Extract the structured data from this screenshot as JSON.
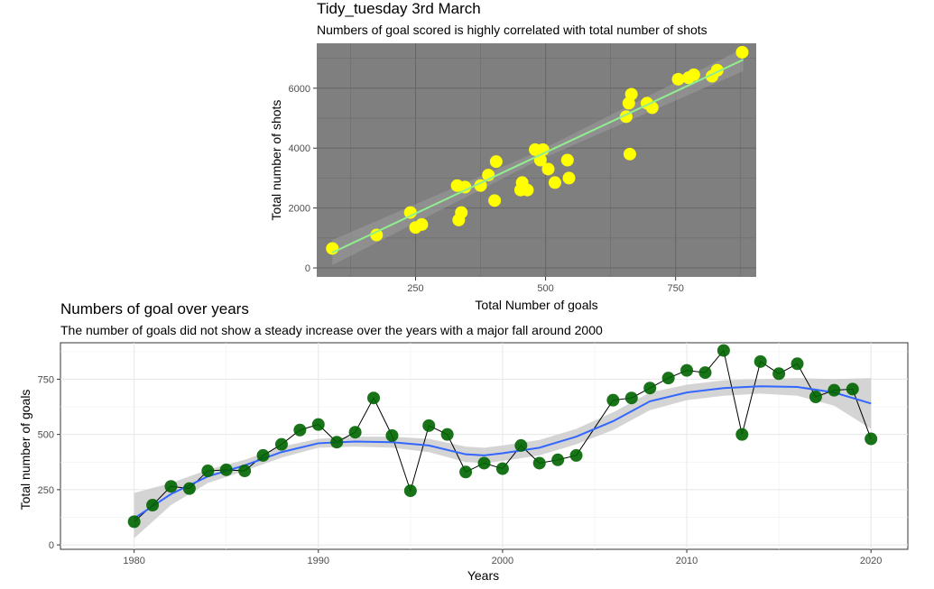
{
  "chart_data": [
    {
      "type": "scatter",
      "title": "Tidy_tuesday 3rd March",
      "subtitle": "Numbers of goal scored is highly correlated with total number of shots",
      "xlabel": "Total Number of goals",
      "ylabel": "Total number of shots",
      "xlim": [
        60,
        905
      ],
      "ylim": [
        -300,
        7500
      ],
      "xticks": [
        250,
        500,
        750
      ],
      "yticks": [
        0,
        2000,
        4000,
        6000
      ],
      "grid": true,
      "background": "#7f7f7f",
      "point_color": "#ffff00",
      "fit_color": "#90ee90",
      "fit_line": {
        "method": "lm",
        "intercept": -220,
        "slope": 8.15,
        "x_range": [
          90,
          880
        ]
      },
      "points": [
        {
          "x": 90,
          "y": 650
        },
        {
          "x": 175,
          "y": 1100
        },
        {
          "x": 240,
          "y": 1850
        },
        {
          "x": 250,
          "y": 1350
        },
        {
          "x": 262,
          "y": 1450
        },
        {
          "x": 330,
          "y": 2750
        },
        {
          "x": 333,
          "y": 1600
        },
        {
          "x": 338,
          "y": 1850
        },
        {
          "x": 345,
          "y": 2700
        },
        {
          "x": 375,
          "y": 2750
        },
        {
          "x": 390,
          "y": 3100
        },
        {
          "x": 402,
          "y": 2250
        },
        {
          "x": 405,
          "y": 3550
        },
        {
          "x": 452,
          "y": 2600
        },
        {
          "x": 455,
          "y": 2850
        },
        {
          "x": 465,
          "y": 2600
        },
        {
          "x": 480,
          "y": 3950
        },
        {
          "x": 490,
          "y": 3600
        },
        {
          "x": 495,
          "y": 3950
        },
        {
          "x": 505,
          "y": 3300
        },
        {
          "x": 518,
          "y": 2850
        },
        {
          "x": 542,
          "y": 3600
        },
        {
          "x": 545,
          "y": 3000
        },
        {
          "x": 655,
          "y": 5050
        },
        {
          "x": 660,
          "y": 5500
        },
        {
          "x": 662,
          "y": 3800
        },
        {
          "x": 665,
          "y": 5800
        },
        {
          "x": 695,
          "y": 5500
        },
        {
          "x": 705,
          "y": 5350
        },
        {
          "x": 755,
          "y": 6300
        },
        {
          "x": 775,
          "y": 6350
        },
        {
          "x": 785,
          "y": 6450
        },
        {
          "x": 820,
          "y": 6400
        },
        {
          "x": 830,
          "y": 6600
        },
        {
          "x": 878,
          "y": 7200
        }
      ]
    },
    {
      "type": "line",
      "title": "Numbers of goal over years",
      "subtitle": "The number of goals did not show a steady increase over the years with a major fall around 2000",
      "xlabel": "Years",
      "ylabel": "Total number of goals",
      "xlim": [
        1976,
        2022
      ],
      "ylim": [
        -20,
        915
      ],
      "xticks": [
        1980,
        1990,
        2000,
        2010,
        2020
      ],
      "yticks": [
        0,
        250,
        500,
        750
      ],
      "grid": true,
      "point_color": "#006400",
      "line_color": "#000000",
      "smooth_color": "#3366ff",
      "ribbon_color": "#cccccc",
      "x": [
        1980,
        1981,
        1982,
        1983,
        1984,
        1985,
        1986,
        1987,
        1988,
        1989,
        1990,
        1991,
        1992,
        1993,
        1994,
        1995,
        1996,
        1997,
        1998,
        1999,
        2000,
        2001,
        2002,
        2003,
        2004,
        2006,
        2007,
        2008,
        2009,
        2010,
        2011,
        2012,
        2013,
        2014,
        2015,
        2016,
        2017,
        2018,
        2019,
        2020
      ],
      "y": [
        105,
        180,
        265,
        255,
        335,
        340,
        335,
        405,
        455,
        520,
        545,
        465,
        510,
        665,
        495,
        245,
        540,
        500,
        330,
        370,
        345,
        450,
        370,
        385,
        405,
        655,
        665,
        710,
        755,
        790,
        780,
        880,
        500,
        830,
        775,
        820,
        670,
        700,
        705,
        480
      ],
      "smooth": {
        "x": [
          1980,
          1982,
          1984,
          1986,
          1988,
          1990,
          1992,
          1994,
          1996,
          1998,
          1999,
          2000,
          2002,
          2004,
          2006,
          2008,
          2010,
          2012,
          2014,
          2016,
          2018,
          2020
        ],
        "y": [
          120,
          230,
          310,
          360,
          420,
          460,
          468,
          465,
          450,
          410,
          405,
          415,
          440,
          490,
          560,
          650,
          690,
          710,
          718,
          715,
          690,
          640
        ],
        "lower": [
          30,
          180,
          280,
          335,
          395,
          440,
          445,
          440,
          420,
          375,
          370,
          380,
          405,
          455,
          520,
          610,
          655,
          675,
          685,
          675,
          630,
          525
        ],
        "upper": [
          235,
          280,
          340,
          385,
          445,
          480,
          490,
          490,
          480,
          445,
          440,
          450,
          475,
          525,
          600,
          690,
          725,
          745,
          750,
          755,
          750,
          755
        ]
      }
    }
  ]
}
